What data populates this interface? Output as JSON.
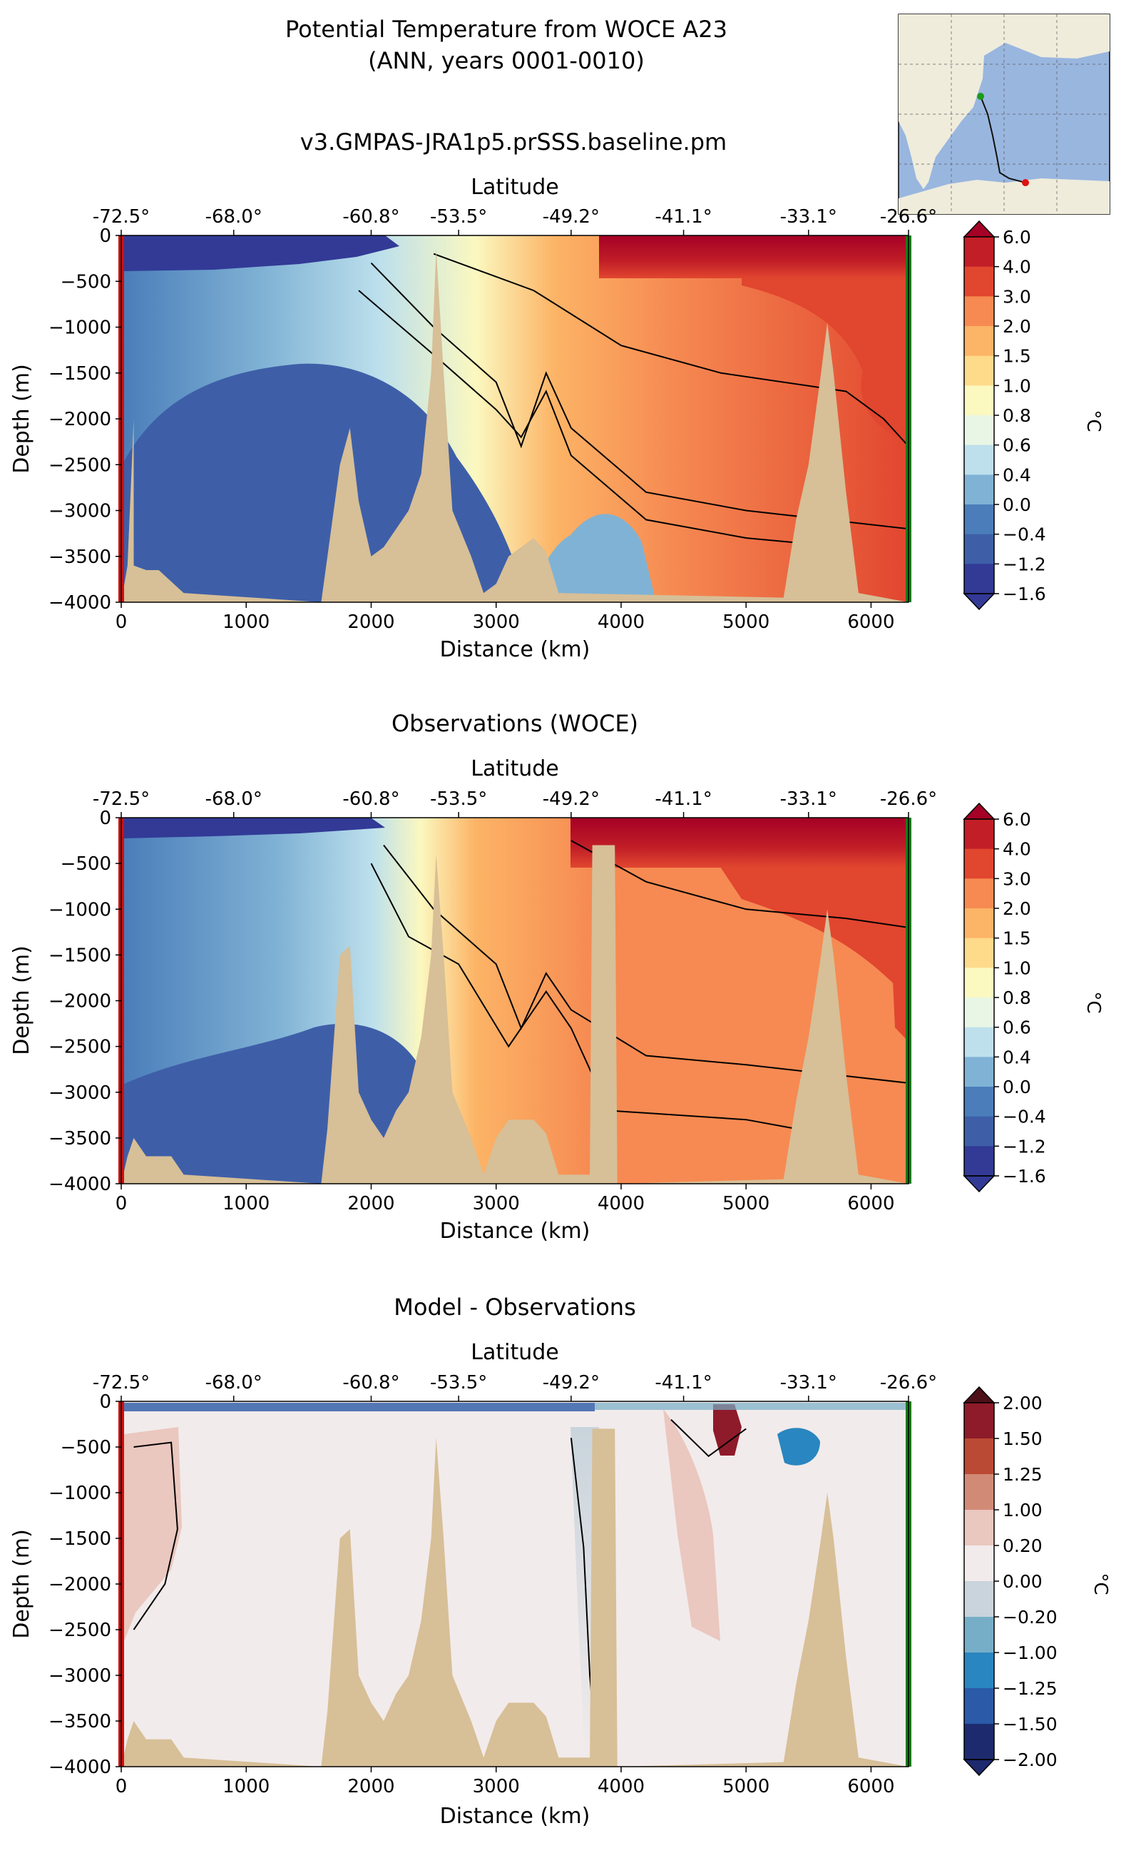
{
  "header": {
    "title_line1": "Potential Temperature from WOCE A23",
    "title_line2": "(ANN, years 0001-0010)"
  },
  "inset_map": {
    "colors": {
      "land": "#efecdc",
      "ocean": "#99b6df",
      "track": "#111111",
      "start": "#1a9b1a",
      "end": "#e01010"
    }
  },
  "colors": {
    "land": "#d7bf97",
    "left_edge": "#cc1111",
    "right_edge": "#187a18",
    "temp_levels": [
      "#323a96",
      "#3e5fa8",
      "#4a7db9",
      "#80b2d5",
      "#bde0ec",
      "#eaf6e5",
      "#fbf8c0",
      "#feda8b",
      "#fcb466",
      "#f68a52",
      "#e1462f",
      "#c11e27",
      "#a50026"
    ],
    "diff_levels": [
      "#1e2a6e",
      "#2a5aa8",
      "#2a86c0",
      "#76aec7",
      "#c9d4dc",
      "#f2ebeb",
      "#eac7bf",
      "#d18a76",
      "#bb4a34",
      "#8e1b2a",
      "#4d0f18"
    ]
  },
  "panels": [
    {
      "title": "v3.GMPAS-JRA1p5.prSSS.baseline.pm",
      "top_axis_label": "Latitude",
      "xlabel": "Distance (km)",
      "ylabel": "Depth (m)",
      "cbar_label": "°C"
    },
    {
      "title": "Observations (WOCE)",
      "top_axis_label": "Latitude",
      "xlabel": "Distance (km)",
      "ylabel": "Depth (m)",
      "cbar_label": "°C"
    },
    {
      "title": "Model - Observations",
      "top_axis_label": "Latitude",
      "xlabel": "Distance (km)",
      "ylabel": "Depth (m)",
      "cbar_label": "°C"
    }
  ],
  "chart_data": [
    {
      "type": "heatmap",
      "title": "v3.GMPAS-JRA1p5.prSSS.baseline.pm",
      "xlabel": "Distance (km)",
      "ylabel": "Depth (m)",
      "top_xlabel": "Latitude",
      "xlim": [
        0,
        6300
      ],
      "ylim": [
        -4000,
        0
      ],
      "x_ticks": [
        "0",
        "1000",
        "2000",
        "3000",
        "4000",
        "5000",
        "6000"
      ],
      "y_ticks": [
        "0",
        "−500",
        "−1000",
        "−1500",
        "−2000",
        "−2500",
        "−3000",
        "−3500",
        "−4000"
      ],
      "top_ticks": [
        "-72.5°",
        "-68.0°",
        "-60.8°",
        "-53.5°",
        "-49.2°",
        "-41.1°",
        "-33.1°",
        "-26.6°"
      ],
      "top_tick_km": [
        0,
        900,
        2000,
        2700,
        3600,
        4500,
        5500,
        6300
      ],
      "colorbar": {
        "label": "°C",
        "ticks": [
          "6.0",
          "4.0",
          "3.0",
          "2.0",
          "1.5",
          "1.0",
          "0.8",
          "0.6",
          "0.4",
          "0.0",
          "−0.4",
          "−1.2",
          "−1.6"
        ]
      },
      "bottom_profile": [
        [
          0,
          -4000
        ],
        [
          50,
          -3600
        ],
        [
          100,
          -2000
        ],
        [
          100,
          -3600
        ],
        [
          200,
          -3650
        ],
        [
          300,
          -3650
        ],
        [
          500,
          -3900
        ],
        [
          1600,
          -4000
        ],
        [
          1750,
          -2500
        ],
        [
          1830,
          -2100
        ],
        [
          1900,
          -2900
        ],
        [
          2000,
          -3500
        ],
        [
          2100,
          -3400
        ],
        [
          2200,
          -3200
        ],
        [
          2300,
          -3000
        ],
        [
          2400,
          -2600
        ],
        [
          2480,
          -1500
        ],
        [
          2520,
          -150
        ],
        [
          2580,
          -1500
        ],
        [
          2650,
          -3000
        ],
        [
          2800,
          -3500
        ],
        [
          2900,
          -3900
        ],
        [
          3000,
          -3800
        ],
        [
          3100,
          -3500
        ],
        [
          3300,
          -3300
        ],
        [
          3400,
          -3450
        ],
        [
          3500,
          -3900
        ],
        [
          5300,
          -3950
        ],
        [
          5400,
          -3100
        ],
        [
          5500,
          -2500
        ],
        [
          5600,
          -1500
        ],
        [
          5650,
          -950
        ],
        [
          5700,
          -1500
        ],
        [
          5800,
          -2800
        ],
        [
          5900,
          -3900
        ],
        [
          6300,
          -4000
        ]
      ],
      "contours": [
        {
          "level": 0.4,
          "pts": [
            [
              1900,
              -600
            ],
            [
              2500,
              -1300
            ],
            [
              3000,
              -1900
            ],
            [
              3200,
              -2200
            ],
            [
              3400,
              -1700
            ],
            [
              3600,
              -2400
            ],
            [
              4200,
              -3100
            ],
            [
              5000,
              -3300
            ],
            [
              5400,
              -3350
            ]
          ]
        },
        {
          "level": 1.5,
          "pts": [
            [
              2000,
              -300
            ],
            [
              2500,
              -1000
            ],
            [
              3000,
              -1600
            ],
            [
              3200,
              -2300
            ],
            [
              3400,
              -1500
            ],
            [
              3600,
              -2100
            ],
            [
              4200,
              -2800
            ],
            [
              5000,
              -3000
            ],
            [
              6300,
              -3200
            ]
          ]
        },
        {
          "level": 2.0,
          "pts": [
            [
              2500,
              -200
            ],
            [
              3300,
              -600
            ],
            [
              4000,
              -1200
            ],
            [
              4800,
              -1500
            ],
            [
              5800,
              -1700
            ],
            [
              6100,
              -2000
            ],
            [
              6300,
              -2300
            ]
          ]
        }
      ]
    },
    {
      "type": "heatmap",
      "title": "Observations (WOCE)",
      "xlabel": "Distance (km)",
      "ylabel": "Depth (m)",
      "top_xlabel": "Latitude",
      "xlim": [
        0,
        6300
      ],
      "ylim": [
        -4000,
        0
      ],
      "x_ticks": [
        "0",
        "1000",
        "2000",
        "3000",
        "4000",
        "5000",
        "6000"
      ],
      "y_ticks": [
        "0",
        "−500",
        "−1000",
        "−1500",
        "−2000",
        "−2500",
        "−3000",
        "−3500",
        "−4000"
      ],
      "top_ticks": [
        "-72.5°",
        "-68.0°",
        "-60.8°",
        "-53.5°",
        "-49.2°",
        "-41.1°",
        "-33.1°",
        "-26.6°"
      ],
      "top_tick_km": [
        0,
        900,
        2000,
        2700,
        3600,
        4500,
        5500,
        6300
      ],
      "colorbar": {
        "label": "°C",
        "ticks": [
          "6.0",
          "4.0",
          "3.0",
          "2.0",
          "1.5",
          "1.0",
          "0.8",
          "0.6",
          "0.4",
          "0.0",
          "−0.4",
          "−1.2",
          "−1.6"
        ]
      },
      "bottom_profile": [
        [
          0,
          -4000
        ],
        [
          50,
          -3700
        ],
        [
          100,
          -3500
        ],
        [
          200,
          -3700
        ],
        [
          400,
          -3700
        ],
        [
          500,
          -3900
        ],
        [
          1600,
          -4000
        ],
        [
          1650,
          -3400
        ],
        [
          1750,
          -1500
        ],
        [
          1830,
          -1400
        ],
        [
          1900,
          -3000
        ],
        [
          2000,
          -3300
        ],
        [
          2100,
          -3500
        ],
        [
          2200,
          -3200
        ],
        [
          2300,
          -3000
        ],
        [
          2400,
          -2400
        ],
        [
          2480,
          -1500
        ],
        [
          2520,
          -400
        ],
        [
          2580,
          -1500
        ],
        [
          2650,
          -3000
        ],
        [
          2800,
          -3500
        ],
        [
          2900,
          -3900
        ],
        [
          3000,
          -3500
        ],
        [
          3100,
          -3300
        ],
        [
          3300,
          -3300
        ],
        [
          3400,
          -3450
        ],
        [
          3500,
          -3900
        ],
        [
          3750,
          -3900
        ],
        [
          3770,
          -300
        ],
        [
          3950,
          -300
        ],
        [
          3970,
          -4000
        ],
        [
          5300,
          -3950
        ],
        [
          5400,
          -3100
        ],
        [
          5500,
          -2400
        ],
        [
          5600,
          -1500
        ],
        [
          5650,
          -1000
        ],
        [
          5700,
          -1500
        ],
        [
          5800,
          -2800
        ],
        [
          5900,
          -3900
        ],
        [
          6300,
          -4000
        ]
      ],
      "contours": [
        {
          "level": 0.4,
          "pts": [
            [
              2000,
              -500
            ],
            [
              2300,
              -1300
            ],
            [
              2700,
              -1600
            ],
            [
              3100,
              -2500
            ],
            [
              3400,
              -1900
            ],
            [
              3600,
              -2300
            ],
            [
              3900,
              -3200
            ],
            [
              5000,
              -3300
            ],
            [
              5400,
              -3400
            ]
          ]
        },
        {
          "level": 1.5,
          "pts": [
            [
              2100,
              -300
            ],
            [
              2500,
              -1000
            ],
            [
              3000,
              -1600
            ],
            [
              3200,
              -2300
            ],
            [
              3400,
              -1700
            ],
            [
              3600,
              -2100
            ],
            [
              4200,
              -2600
            ],
            [
              5000,
              -2700
            ],
            [
              6300,
              -2900
            ]
          ]
        },
        {
          "level": 2.0,
          "pts": [
            [
              3600,
              -250
            ],
            [
              4200,
              -700
            ],
            [
              5000,
              -1000
            ],
            [
              5800,
              -1100
            ],
            [
              6300,
              -1200
            ]
          ]
        }
      ]
    },
    {
      "type": "heatmap",
      "title": "Model - Observations",
      "xlabel": "Distance (km)",
      "ylabel": "Depth (m)",
      "top_xlabel": "Latitude",
      "xlim": [
        0,
        6300
      ],
      "ylim": [
        -4000,
        0
      ],
      "x_ticks": [
        "0",
        "1000",
        "2000",
        "3000",
        "4000",
        "5000",
        "6000"
      ],
      "y_ticks": [
        "0",
        "−500",
        "−1000",
        "−1500",
        "−2000",
        "−2500",
        "−3000",
        "−3500",
        "−4000"
      ],
      "top_ticks": [
        "-72.5°",
        "-68.0°",
        "-60.8°",
        "-53.5°",
        "-49.2°",
        "-41.1°",
        "-33.1°",
        "-26.6°"
      ],
      "top_tick_km": [
        0,
        900,
        2000,
        2700,
        3600,
        4500,
        5500,
        6300
      ],
      "colorbar": {
        "label": "°C",
        "ticks": [
          "2.00",
          "1.50",
          "1.25",
          "1.00",
          "0.20",
          "0.00",
          "−0.20",
          "−1.00",
          "−1.25",
          "−1.50",
          "−2.00"
        ]
      },
      "bottom_profile": [
        [
          0,
          -4000
        ],
        [
          50,
          -3700
        ],
        [
          100,
          -3500
        ],
        [
          200,
          -3700
        ],
        [
          400,
          -3700
        ],
        [
          500,
          -3900
        ],
        [
          1600,
          -4000
        ],
        [
          1650,
          -3400
        ],
        [
          1750,
          -1500
        ],
        [
          1830,
          -1400
        ],
        [
          1900,
          -3000
        ],
        [
          2000,
          -3300
        ],
        [
          2100,
          -3500
        ],
        [
          2200,
          -3200
        ],
        [
          2300,
          -3000
        ],
        [
          2400,
          -2400
        ],
        [
          2480,
          -1500
        ],
        [
          2520,
          -400
        ],
        [
          2580,
          -1500
        ],
        [
          2650,
          -3000
        ],
        [
          2800,
          -3500
        ],
        [
          2900,
          -3900
        ],
        [
          3000,
          -3500
        ],
        [
          3100,
          -3300
        ],
        [
          3300,
          -3300
        ],
        [
          3400,
          -3450
        ],
        [
          3500,
          -3900
        ],
        [
          3750,
          -3900
        ],
        [
          3770,
          -300
        ],
        [
          3950,
          -300
        ],
        [
          3970,
          -4000
        ],
        [
          5300,
          -3950
        ],
        [
          5400,
          -3100
        ],
        [
          5500,
          -2400
        ],
        [
          5600,
          -1500
        ],
        [
          5650,
          -1000
        ],
        [
          5700,
          -1500
        ],
        [
          5800,
          -2800
        ],
        [
          5900,
          -3900
        ],
        [
          6300,
          -4000
        ]
      ],
      "contours": [
        {
          "level": 0.2,
          "pts": [
            [
              100,
              -500
            ],
            [
              400,
              -450
            ],
            [
              450,
              -1400
            ],
            [
              350,
              -2000
            ],
            [
              200,
              -2300
            ],
            [
              100,
              -2500
            ]
          ]
        },
        {
          "level": 0.2,
          "pts": [
            [
              4400,
              -200
            ],
            [
              4700,
              -600
            ],
            [
              5000,
              -300
            ]
          ]
        },
        {
          "level": -0.2,
          "pts": [
            [
              3600,
              -400
            ],
            [
              3700,
              -1600
            ],
            [
              3750,
              -3000
            ],
            [
              3800,
              -3800
            ]
          ]
        }
      ]
    }
  ]
}
